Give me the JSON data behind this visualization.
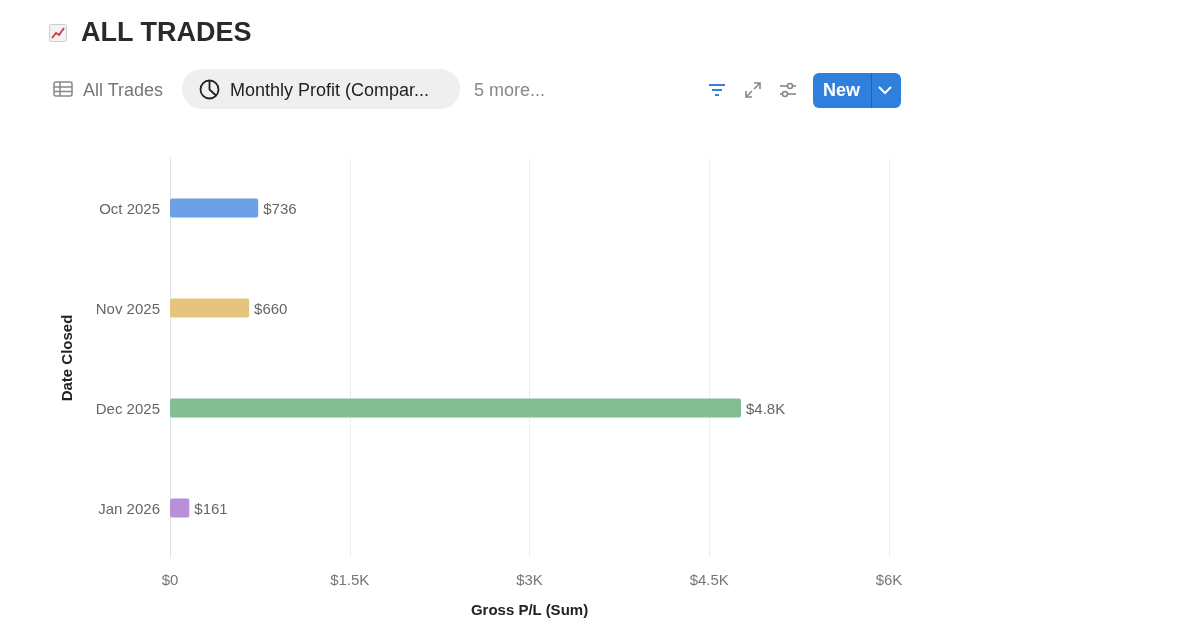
{
  "chart_data": {
    "type": "bar",
    "orientation": "horizontal",
    "title": "ALL TRADES",
    "annotations": [
      "All Trades",
      "Monthly Profit (Compar...",
      "5 more...",
      "New"
    ],
    "xlabel": "Gross P/L (Sum)",
    "ylabel": "Date Closed",
    "categories": [
      "Oct 2025",
      "Nov 2025",
      "Dec 2025",
      "Jan 2026"
    ],
    "values": [
      736,
      660,
      4765,
      161
    ],
    "colors": [
      "#6b9fe6",
      "#e5c47b",
      "#84bc94",
      "#b88fd8"
    ],
    "value_labels": [
      "$736",
      "$660",
      "$4.8K",
      "$161"
    ],
    "xlim": [
      0,
      6000
    ],
    "xticks": [
      {
        "value": 0,
        "label": "$0"
      },
      {
        "value": 1500,
        "label": "$1.5K"
      },
      {
        "value": 3000,
        "label": "$3K"
      },
      {
        "value": 4500,
        "label": "$4.5K"
      },
      {
        "value": 6000,
        "label": "$6K"
      }
    ],
    "grid": "x"
  }
}
